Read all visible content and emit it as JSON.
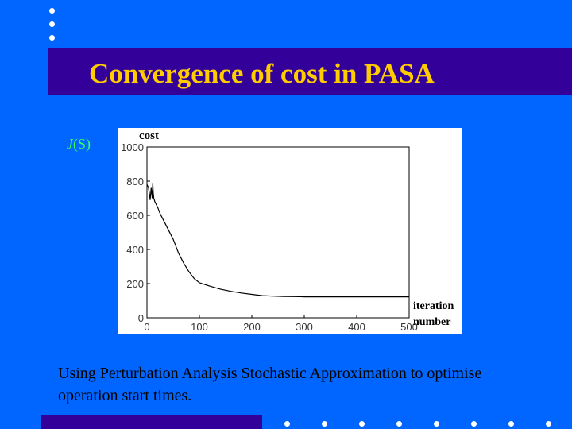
{
  "slide": {
    "title": "Convergence of cost in PASA",
    "y_label_prefix": "J",
    "y_label_suffix": "(S)",
    "body_text": "Using Perturbation Analysis Stochastic Approximation to optimise operation start times.",
    "colors": {
      "background": "#0066ff",
      "title_bar": "#330099",
      "title_text": "#ffcc00",
      "axis_label": "#33ff66"
    }
  },
  "chart_data": {
    "type": "line",
    "ylabel": "cost",
    "xlabel_line1": "iteration",
    "xlabel_line2": "number",
    "xlim": [
      0,
      500
    ],
    "ylim": [
      0,
      1000
    ],
    "x_ticks": [
      "0",
      "100",
      "200",
      "300",
      "400",
      "500"
    ],
    "y_ticks": [
      "0",
      "200",
      "400",
      "600",
      "800",
      "1000"
    ],
    "grid": false,
    "x": [
      0,
      3,
      5,
      6,
      8,
      10,
      11,
      12,
      13,
      15,
      20,
      25,
      30,
      35,
      40,
      45,
      50,
      55,
      60,
      70,
      80,
      90,
      100,
      120,
      140,
      160,
      180,
      200,
      220,
      240,
      260,
      280,
      300,
      350,
      400,
      450,
      500
    ],
    "values": [
      780,
      760,
      720,
      690,
      760,
      700,
      790,
      730,
      700,
      680,
      650,
      610,
      580,
      550,
      520,
      490,
      460,
      420,
      380,
      320,
      270,
      230,
      205,
      185,
      168,
      155,
      145,
      137,
      130,
      127,
      125,
      124,
      123,
      123,
      123,
      123,
      123
    ]
  }
}
